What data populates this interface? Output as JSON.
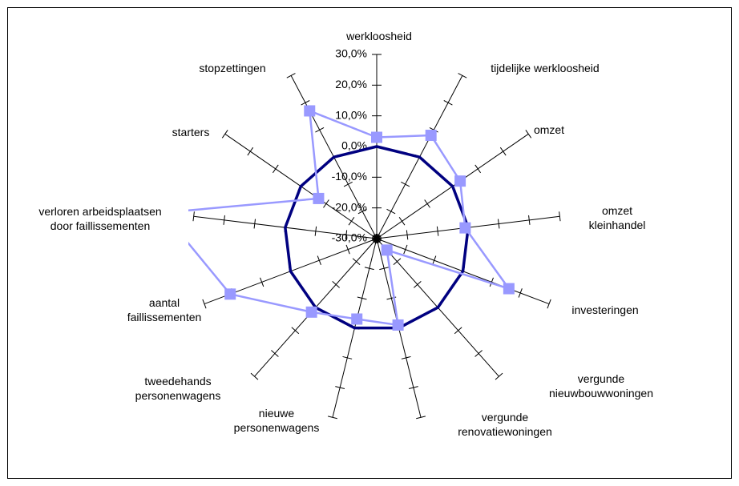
{
  "chart_data": {
    "type": "radar",
    "categories": [
      "werkloosheid",
      "tijdelijke werkloosheid",
      "omzet",
      "omzet\nkleinhandel",
      "investeringen",
      "vergunde\nnieuwbouwwoningen",
      "vergunde\nrenovatiewoningen",
      "nieuwe\npersonenwagens",
      "tweedehands\npersonenwagens",
      "aantal\nfaillissementen",
      "verloren arbeidsplaatsen\ndoor faillissementen",
      "starters",
      "stopzettingen"
    ],
    "series": [
      {
        "color": "#000080",
        "marker": false,
        "values": [
          0,
          0,
          0,
          0,
          0,
          0,
          0,
          0,
          0,
          0,
          0,
          0,
          0
        ]
      },
      {
        "color": "#9999ff",
        "marker": true,
        "values": [
          3,
          8,
          3,
          -1,
          16,
          -25,
          -1,
          -3,
          2,
          21,
          40,
          -7,
          17
        ]
      }
    ],
    "ylim": [
      -30,
      30
    ],
    "yticks": [
      {
        "value": -30,
        "label": "-30,0%"
      },
      {
        "value": -20,
        "label": "-20,0%"
      },
      {
        "value": -10,
        "label": "-10,0%"
      },
      {
        "value": 0,
        "label": "0,0%"
      },
      {
        "value": 10,
        "label": "10,0%"
      },
      {
        "value": 20,
        "label": "20,0%"
      },
      {
        "value": 30,
        "label": "30,0%"
      }
    ]
  }
}
